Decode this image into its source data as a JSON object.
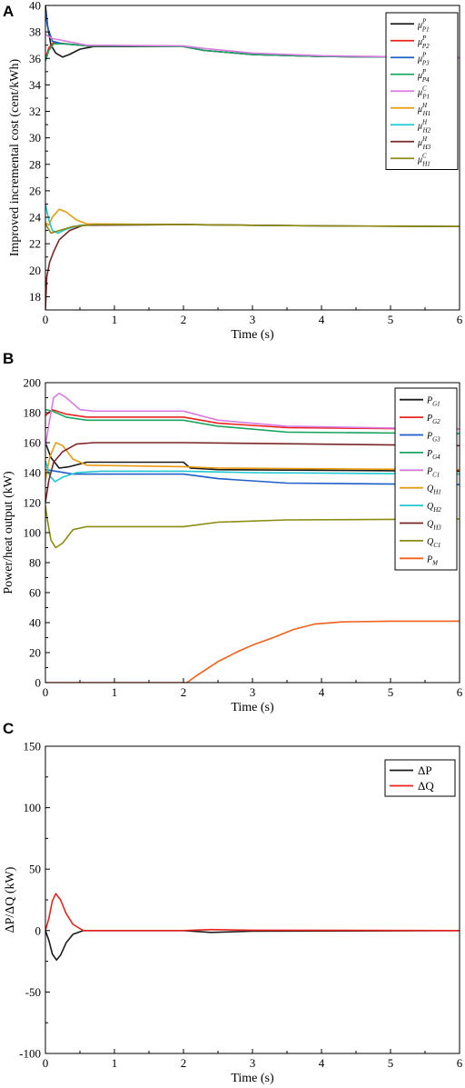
{
  "chart_data": [
    {
      "panel_label": "A",
      "type": "line",
      "xlabel": "Time (s)",
      "ylabel": "Improved incremental cost (cent/kWh)",
      "xlim": [
        0,
        6
      ],
      "ylim": [
        17,
        40
      ],
      "xticks": [
        0,
        1,
        2,
        3,
        4,
        5,
        6
      ],
      "yticks": [
        18,
        20,
        22,
        24,
        26,
        28,
        30,
        32,
        34,
        36,
        38,
        40
      ],
      "legend_position": "top-right",
      "series": [
        {
          "name": "μP1",
          "sym": "μ",
          "sub": "P1",
          "sup": "P",
          "color": "#1a1a1a",
          "points": [
            [
              0,
              40
            ],
            [
              0.03,
              38.5
            ],
            [
              0.08,
              37
            ],
            [
              0.15,
              36.4
            ],
            [
              0.25,
              36.1
            ],
            [
              0.35,
              36.3
            ],
            [
              0.5,
              36.7
            ],
            [
              0.7,
              36.9
            ],
            [
              2,
              36.9
            ],
            [
              2.3,
              36.6
            ],
            [
              3,
              36.3
            ],
            [
              4,
              36.15
            ],
            [
              6,
              36.05
            ]
          ]
        },
        {
          "name": "μP2",
          "sym": "μ",
          "sub": "P2",
          "sup": "P",
          "color": "#e8231e",
          "points": [
            [
              0,
              36
            ],
            [
              0.05,
              36.8
            ],
            [
              0.12,
              37.2
            ],
            [
              0.3,
              37.1
            ],
            [
              0.6,
              36.95
            ],
            [
              2,
              36.9
            ],
            [
              2.3,
              36.6
            ],
            [
              3,
              36.3
            ],
            [
              4,
              36.15
            ],
            [
              6,
              36.05
            ]
          ]
        },
        {
          "name": "μP3",
          "sym": "μ",
          "sub": "P3",
          "sup": "P",
          "color": "#1c5fc8",
          "points": [
            [
              0,
              39.5
            ],
            [
              0.03,
              38.4
            ],
            [
              0.1,
              37.3
            ],
            [
              0.25,
              37.1
            ],
            [
              0.5,
              37
            ],
            [
              2,
              36.9
            ],
            [
              2.3,
              36.6
            ],
            [
              3,
              36.3
            ],
            [
              4,
              36.15
            ],
            [
              6,
              36.05
            ]
          ]
        },
        {
          "name": "μP4",
          "sym": "μ",
          "sub": "P4",
          "sup": "P",
          "color": "#1aa660",
          "points": [
            [
              0,
              35.8
            ],
            [
              0.05,
              36.6
            ],
            [
              0.12,
              37.1
            ],
            [
              0.3,
              37.1
            ],
            [
              0.6,
              36.95
            ],
            [
              2,
              36.9
            ],
            [
              2.3,
              36.6
            ],
            [
              3,
              36.3
            ],
            [
              4,
              36.15
            ],
            [
              6,
              36.05
            ]
          ]
        },
        {
          "name": "μC P1",
          "sym": "μ",
          "sub": "P1",
          "sup": "C",
          "color": "#d97be0",
          "points": [
            [
              0,
              37.8
            ],
            [
              0.1,
              37.5
            ],
            [
              0.3,
              37.3
            ],
            [
              0.6,
              37
            ],
            [
              2,
              36.95
            ],
            [
              2.3,
              36.75
            ],
            [
              3,
              36.4
            ],
            [
              4,
              36.2
            ],
            [
              6,
              36.05
            ]
          ]
        },
        {
          "name": "μH1",
          "sym": "μ",
          "sub": "H1",
          "sup": "H",
          "color": "#e89a10",
          "points": [
            [
              0,
              23.6
            ],
            [
              0.05,
              23.4
            ],
            [
              0.1,
              24
            ],
            [
              0.2,
              24.6
            ],
            [
              0.3,
              24.4
            ],
            [
              0.45,
              23.8
            ],
            [
              0.6,
              23.5
            ],
            [
              2,
              23.45
            ],
            [
              3,
              23.4
            ],
            [
              4,
              23.35
            ],
            [
              6,
              23.3
            ]
          ]
        },
        {
          "name": "μH2",
          "sym": "μ",
          "sub": "H2",
          "sup": "H",
          "color": "#20c8d0",
          "points": [
            [
              0,
              25
            ],
            [
              0.05,
              23.8
            ],
            [
              0.1,
              23
            ],
            [
              0.18,
              22.8
            ],
            [
              0.3,
              23.1
            ],
            [
              0.5,
              23.4
            ],
            [
              2,
              23.45
            ],
            [
              3,
              23.4
            ],
            [
              4,
              23.35
            ],
            [
              6,
              23.3
            ]
          ]
        },
        {
          "name": "μH3",
          "sym": "μ",
          "sub": "H3",
          "sup": "H",
          "color": "#7a2626",
          "points": [
            [
              0,
              17
            ],
            [
              0.02,
              19.5
            ],
            [
              0.06,
              20.6
            ],
            [
              0.12,
              21.4
            ],
            [
              0.2,
              22.3
            ],
            [
              0.35,
              23
            ],
            [
              0.55,
              23.4
            ],
            [
              2,
              23.45
            ],
            [
              3,
              23.4
            ],
            [
              4,
              23.35
            ],
            [
              6,
              23.3
            ]
          ]
        },
        {
          "name": "μC H1",
          "sym": "μ",
          "sub": "H1",
          "sup": "C",
          "color": "#8c8a10",
          "points": [
            [
              0,
              23.5
            ],
            [
              0.08,
              22.8
            ],
            [
              0.2,
              23
            ],
            [
              0.4,
              23.3
            ],
            [
              0.7,
              23.45
            ],
            [
              2,
              23.45
            ],
            [
              3,
              23.4
            ],
            [
              4,
              23.35
            ],
            [
              6,
              23.3
            ]
          ]
        }
      ]
    },
    {
      "panel_label": "B",
      "type": "line",
      "xlabel": "Time (s)",
      "ylabel": "Power/heat output (kW)",
      "xlim": [
        0,
        6
      ],
      "ylim": [
        0,
        200
      ],
      "xticks": [
        0,
        1,
        2,
        3,
        4,
        5,
        6
      ],
      "yticks": [
        0,
        20,
        40,
        60,
        80,
        100,
        120,
        140,
        160,
        180,
        200
      ],
      "legend_position": "top-right",
      "series": [
        {
          "name": "PG1",
          "sym": "P",
          "sub": "G1",
          "sup": "",
          "color": "#1a1a1a",
          "points": [
            [
              0,
              160
            ],
            [
              0.08,
              150
            ],
            [
              0.2,
              143
            ],
            [
              0.35,
              144
            ],
            [
              0.6,
              147
            ],
            [
              2,
              147
            ],
            [
              2.1,
              143
            ],
            [
              2.5,
              142
            ],
            [
              6,
              141
            ]
          ]
        },
        {
          "name": "PG2",
          "sym": "P",
          "sub": "G2",
          "sup": "",
          "color": "#e8231e",
          "points": [
            [
              0,
              178
            ],
            [
              0.1,
              182
            ],
            [
              0.3,
              179
            ],
            [
              0.6,
              177
            ],
            [
              2,
              177
            ],
            [
              2.5,
              173
            ],
            [
              3.5,
              170
            ],
            [
              6,
              169
            ]
          ]
        },
        {
          "name": "PG3",
          "sym": "P",
          "sub": "G3",
          "sup": "",
          "color": "#1c5fc8",
          "points": [
            [
              0,
              142
            ],
            [
              0.15,
              141
            ],
            [
              0.4,
              139
            ],
            [
              0.7,
              139
            ],
            [
              2,
              139
            ],
            [
              2.5,
              136
            ],
            [
              3.5,
              133
            ],
            [
              6,
              132
            ]
          ]
        },
        {
          "name": "PG4",
          "sym": "P",
          "sub": "G4",
          "sup": "",
          "color": "#1aa660",
          "points": [
            [
              0,
              182
            ],
            [
              0.1,
              181
            ],
            [
              0.3,
              177
            ],
            [
              0.6,
              175
            ],
            [
              2,
              175
            ],
            [
              2.5,
              171
            ],
            [
              3.5,
              167
            ],
            [
              6,
              166
            ]
          ]
        },
        {
          "name": "PC1",
          "sym": "P",
          "sub": "C1",
          "sup": "",
          "color": "#d97be0",
          "points": [
            [
              0,
              158
            ],
            [
              0.06,
              175
            ],
            [
              0.12,
              190
            ],
            [
              0.2,
              193
            ],
            [
              0.3,
              190
            ],
            [
              0.5,
              182
            ],
            [
              0.7,
              181
            ],
            [
              2,
              181
            ],
            [
              2.5,
              175
            ],
            [
              3.5,
              171
            ],
            [
              6,
              169
            ]
          ]
        },
        {
          "name": "QH1",
          "sym": "Q",
          "sub": "H1",
          "sup": "",
          "color": "#e89a10",
          "points": [
            [
              0,
              135
            ],
            [
              0.06,
              150
            ],
            [
              0.15,
              160
            ],
            [
              0.25,
              158
            ],
            [
              0.4,
              149
            ],
            [
              0.6,
              145
            ],
            [
              2,
              144
            ],
            [
              2.5,
              143
            ],
            [
              6,
              142
            ]
          ]
        },
        {
          "name": "QH2",
          "sym": "Q",
          "sub": "H2",
          "sup": "",
          "color": "#20c8d0",
          "points": [
            [
              0,
              148
            ],
            [
              0.06,
              138
            ],
            [
              0.14,
              134
            ],
            [
              0.25,
              137
            ],
            [
              0.45,
              140
            ],
            [
              0.8,
              141
            ],
            [
              2,
              141
            ],
            [
              3,
              140
            ],
            [
              6,
              139
            ]
          ]
        },
        {
          "name": "QH3",
          "sym": "Q",
          "sub": "H3",
          "sup": "",
          "color": "#7a2626",
          "points": [
            [
              0,
              120
            ],
            [
              0.05,
              135
            ],
            [
              0.12,
              147
            ],
            [
              0.25,
              154
            ],
            [
              0.45,
              159
            ],
            [
              0.7,
              160
            ],
            [
              2,
              160
            ],
            [
              3,
              159.5
            ],
            [
              6,
              158
            ]
          ]
        },
        {
          "name": "QC1",
          "sym": "Q",
          "sub": "C1",
          "sup": "",
          "color": "#8c8a10",
          "points": [
            [
              0,
              118
            ],
            [
              0.03,
              108
            ],
            [
              0.08,
              95
            ],
            [
              0.15,
              90
            ],
            [
              0.25,
              93
            ],
            [
              0.4,
              102
            ],
            [
              0.6,
              104
            ],
            [
              2,
              104
            ],
            [
              2.5,
              107
            ],
            [
              3.5,
              108.5
            ],
            [
              6,
              109
            ]
          ]
        },
        {
          "name": "PM",
          "sym": "P",
          "sub": "M",
          "sup": "",
          "color": "#f0601a",
          "points": [
            [
              0,
              0
            ],
            [
              2.05,
              0
            ],
            [
              2.2,
              5
            ],
            [
              2.5,
              14
            ],
            [
              2.8,
              21
            ],
            [
              3,
              25
            ],
            [
              3.3,
              30
            ],
            [
              3.6,
              35.5
            ],
            [
              3.9,
              39
            ],
            [
              4.3,
              40.5
            ],
            [
              5,
              41
            ],
            [
              6,
              41
            ]
          ]
        }
      ]
    },
    {
      "panel_label": "C",
      "type": "line",
      "xlabel": "Time (s)",
      "ylabel": "ΔP/ΔQ (kW)",
      "xlim": [
        0,
        6
      ],
      "ylim": [
        -100,
        150
      ],
      "xticks": [
        0,
        1,
        2,
        3,
        4,
        5,
        6
      ],
      "yticks": [
        -100,
        -50,
        0,
        50,
        100,
        150
      ],
      "legend_position": "top-right",
      "series": [
        {
          "name": "ΔP",
          "sym": "ΔP",
          "sub": "",
          "sup": "",
          "color": "#1a1a1a",
          "points": [
            [
              0,
              0
            ],
            [
              0.05,
              -8
            ],
            [
              0.1,
              -19
            ],
            [
              0.16,
              -24
            ],
            [
              0.22,
              -20
            ],
            [
              0.3,
              -10
            ],
            [
              0.4,
              -3
            ],
            [
              0.55,
              0
            ],
            [
              2,
              0
            ],
            [
              2.4,
              -1.5
            ],
            [
              3,
              -0.5
            ],
            [
              6,
              0
            ]
          ]
        },
        {
          "name": "ΔQ",
          "sym": "ΔQ",
          "sub": "",
          "sup": "",
          "color": "#e8231e",
          "points": [
            [
              0,
              0
            ],
            [
              0.05,
              10
            ],
            [
              0.1,
              24
            ],
            [
              0.15,
              30
            ],
            [
              0.22,
              25
            ],
            [
              0.3,
              14
            ],
            [
              0.4,
              5
            ],
            [
              0.55,
              0
            ],
            [
              2,
              0
            ],
            [
              2.4,
              0.8
            ],
            [
              3,
              0.3
            ],
            [
              6,
              0
            ]
          ]
        }
      ]
    }
  ]
}
